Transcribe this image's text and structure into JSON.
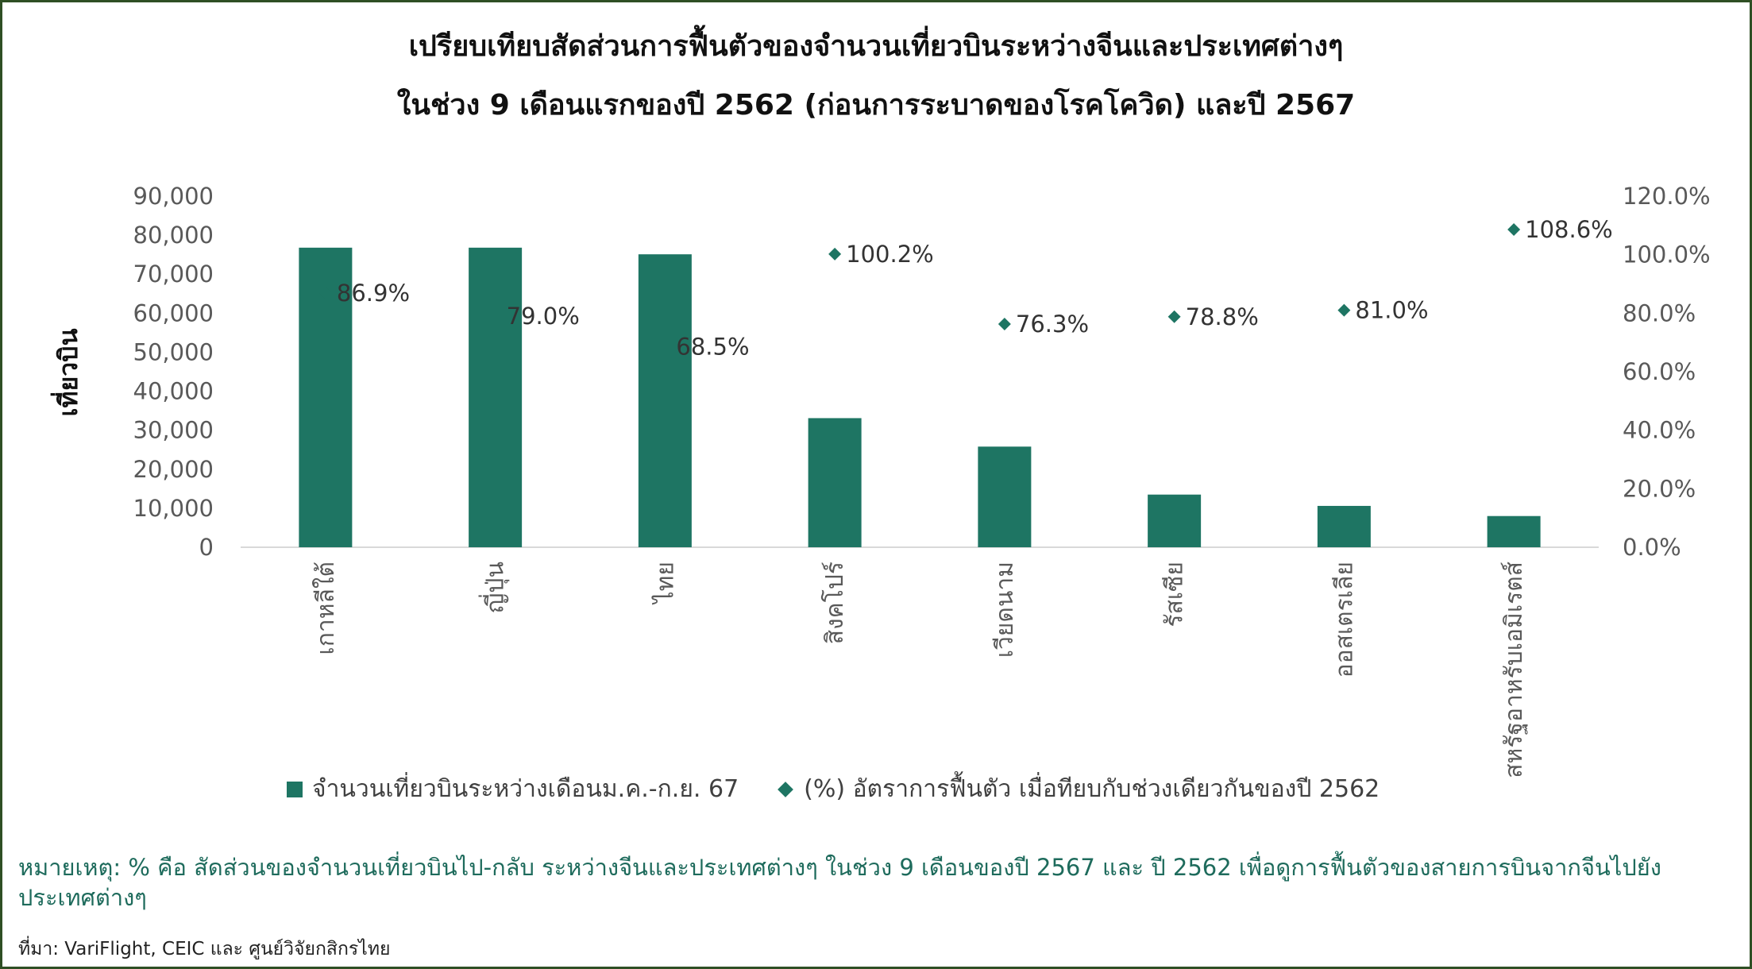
{
  "title_line1": "เปรียบเทียบสัดส่วนการฟื้นตัวของจำนวนเที่ยวบินระหว่างจีนและประเทศต่างๆ",
  "title_line2": "ในช่วง 9 เดือนแรกของปี 2562 (ก่อนการระบาดของโรคโควิด) และปี 2567",
  "chart_data": {
    "type": "bar",
    "title": "เปรียบเทียบสัดส่วนการฟื้นตัวของจำนวนเที่ยวบินระหว่างจีนและประเทศต่างๆ ในช่วง 9 เดือนแรกของปี 2562 (ก่อนการระบาดของโรคโควิด) และปี 2567",
    "ylabel": "เที่ยวบิน",
    "categories": [
      "เกาหลีใต้",
      "ญี่ปุ่น",
      "ไทย",
      "สิงคโปร์",
      "เวียดนาม",
      "รัสเซีย",
      "ออสเตรเลีย",
      "สหรัฐอาหรับเอมิเรตส์"
    ],
    "series": [
      {
        "name": "จำนวนเที่ยวบินระหว่างเดือนม.ค.-ก.ย. 67",
        "kind": "bar",
        "axis": "left",
        "color": "#1e7563",
        "values": [
          76800,
          76800,
          75100,
          33100,
          25800,
          13500,
          10600,
          8000
        ]
      },
      {
        "name": "(%) อัตราการฟื้นตัว เมื่อทียบกับช่วงเดียวกันของปี 2562",
        "kind": "scatter",
        "axis": "right",
        "color": "#1e7563",
        "values": [
          86.9,
          79.0,
          68.5,
          100.2,
          76.3,
          78.8,
          81.0,
          108.6
        ],
        "labels": [
          "86.9%",
          "79.0%",
          "68.5%",
          "100.2%",
          "76.3%",
          "78.8%",
          "81.0%",
          "108.6%"
        ]
      }
    ],
    "y_left": {
      "min": 0,
      "max": 90000,
      "ticks": [
        "0",
        "10,000",
        "20,000",
        "30,000",
        "40,000",
        "50,000",
        "60,000",
        "70,000",
        "80,000",
        "90,000"
      ]
    },
    "y_right": {
      "min": 0,
      "max": 120,
      "ticks": [
        "0.0%",
        "20.0%",
        "40.0%",
        "60.0%",
        "80.0%",
        "100.0%",
        "120.0%"
      ]
    },
    "grid": false,
    "legend_position": "bottom"
  },
  "legend": {
    "bar_label": "จำนวนเที่ยวบินระหว่างเดือนม.ค.-ก.ย. 67",
    "dot_label": "(%) อัตราการฟื้นตัว เมื่อทียบกับช่วงเดียวกันของปี 2562"
  },
  "note": "หมายเหตุ: % คือ สัดส่วนของจำนวนเที่ยวบินไป-กลับ ระหว่างจีนและประเทศต่างๆ ในช่วง 9 เดือนของปี 2567 และ ปี 2562 เพื่อดูการฟื้นตัวของสายการบินจากจีนไปยังประเทศต่างๆ",
  "source": "ที่มา: VariFlight, CEIC และ ศูนย์วิจัยกสิกรไทย"
}
